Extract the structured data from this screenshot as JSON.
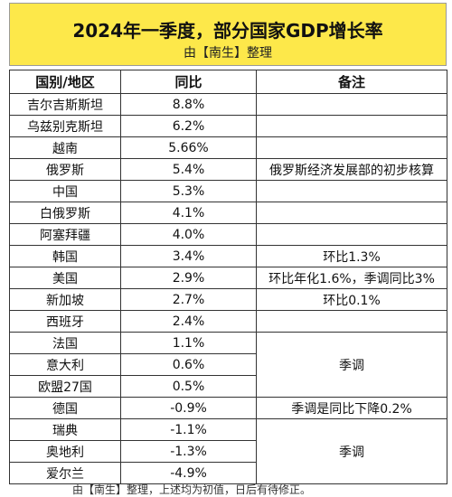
{
  "title": "2024年一季度，部分国家GDP增长率",
  "subtitle": "由【南生】整理",
  "headers": {
    "country": "国别/地区",
    "yoy": "同比",
    "note": "备注"
  },
  "rows": [
    {
      "country": "吉尔吉斯斯坦",
      "yoy": "8.8%"
    },
    {
      "country": "乌兹别克斯坦",
      "yoy": "6.2%"
    },
    {
      "country": "越南",
      "yoy": "5.66%"
    },
    {
      "country": "俄罗斯",
      "yoy": "5.4%"
    },
    {
      "country": "中国",
      "yoy": "5.3%"
    },
    {
      "country": "白俄罗斯",
      "yoy": "4.1%"
    },
    {
      "country": "阿塞拜疆",
      "yoy": "4.0%"
    },
    {
      "country": "韩国",
      "yoy": "3.4%"
    },
    {
      "country": "美国",
      "yoy": "2.9%"
    },
    {
      "country": "新加坡",
      "yoy": "2.7%"
    },
    {
      "country": "西班牙",
      "yoy": "2.4%"
    },
    {
      "country": "法国",
      "yoy": "1.1%"
    },
    {
      "country": "意大利",
      "yoy": "0.6%"
    },
    {
      "country": "欧盟27国",
      "yoy": "0.5%"
    },
    {
      "country": "德国",
      "yoy": "-0.9%"
    },
    {
      "country": "瑞典",
      "yoy": "-1.1%"
    },
    {
      "country": "奥地利",
      "yoy": "-1.3%"
    },
    {
      "country": "爱尔兰",
      "yoy": "-4.9%"
    }
  ],
  "notes": {
    "russia": "俄罗斯经济发展部的初步核算",
    "korea": "环比1.3%",
    "usa": "环比年化1.6%，季调同比3%",
    "singapore": "环比0.1%",
    "france_group": "季调",
    "germany": "季调是同比下降0.2%",
    "sweden_group": "季调"
  },
  "footer": "由【南生】整理，上述均为初值，日后有待修正。"
}
